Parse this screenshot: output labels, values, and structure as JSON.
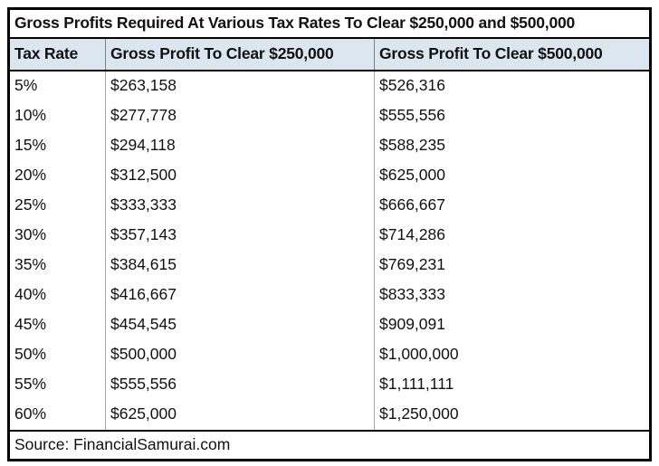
{
  "chart_data": {
    "type": "table",
    "title": "Gross Profits Required At Various Tax Rates To Clear $250,000 and $500,000",
    "columns": [
      "Tax Rate",
      "Gross Profit To Clear $250,000",
      "Gross Profit To Clear $500,000"
    ],
    "rows": [
      [
        "5%",
        "$263,158",
        "$526,316"
      ],
      [
        "10%",
        "$277,778",
        "$555,556"
      ],
      [
        "15%",
        "$294,118",
        "$588,235"
      ],
      [
        "20%",
        "$312,500",
        "$625,000"
      ],
      [
        "25%",
        "$333,333",
        "$666,667"
      ],
      [
        "30%",
        "$357,143",
        "$714,286"
      ],
      [
        "35%",
        "$384,615",
        "$769,231"
      ],
      [
        "40%",
        "$416,667",
        "$833,333"
      ],
      [
        "45%",
        "$454,545",
        "$909,091"
      ],
      [
        "50%",
        "$500,000",
        "$1,000,000"
      ],
      [
        "55%",
        "$555,556",
        "$1,111,111"
      ],
      [
        "60%",
        "$625,000",
        "$1,250,000"
      ]
    ],
    "tax_rates_numeric": [
      5,
      10,
      15,
      20,
      25,
      30,
      35,
      40,
      45,
      50,
      55,
      60
    ],
    "gross_profit_to_clear_250k": [
      263158,
      277778,
      294118,
      312500,
      333333,
      357143,
      384615,
      416667,
      454545,
      500000,
      555556,
      625000
    ],
    "gross_profit_to_clear_500k": [
      526316,
      555556,
      588235,
      625000,
      666667,
      714286,
      769231,
      833333,
      909091,
      1000000,
      1111111,
      1250000
    ],
    "source": "Source: FinancialSamurai.com"
  },
  "colors": {
    "header_bg": "#dce6f1",
    "outer_border": "#000000",
    "column_divider": "#a6a6a6",
    "text": "#111111"
  }
}
